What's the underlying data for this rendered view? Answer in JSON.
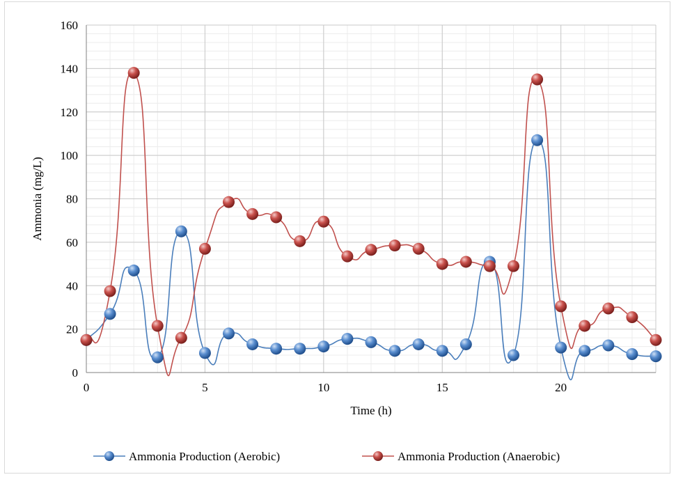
{
  "chart_data": {
    "type": "line",
    "title": "",
    "xlabel": "Time (h)",
    "ylabel": "Ammonia  (mg/L)",
    "xlim": [
      0,
      24
    ],
    "ylim": [
      0,
      160
    ],
    "x_ticks": [
      0,
      5,
      10,
      15,
      20
    ],
    "y_ticks": [
      0,
      20,
      40,
      60,
      80,
      100,
      120,
      140,
      160
    ],
    "grid": true,
    "minor_grid": true,
    "smooth": true,
    "legend_position": "bottom",
    "x": [
      0,
      1,
      2,
      3,
      4,
      5,
      6,
      7,
      8,
      9,
      10,
      11,
      12,
      13,
      14,
      15,
      16,
      17,
      18,
      19,
      20,
      21,
      22,
      23,
      24
    ],
    "series": [
      {
        "name": "Ammonia Production (Aerobic)",
        "color": "#4a7ebb",
        "values": [
          15,
          27,
          47,
          7,
          65,
          9,
          18,
          13,
          11,
          11,
          12,
          15.5,
          14,
          10,
          13,
          10,
          13,
          51,
          8,
          107,
          11.5,
          10,
          12.5,
          8.5,
          7.5
        ]
      },
      {
        "name": "Ammonia Production (Anaerobic)",
        "color": "#c0504d",
        "values": [
          15,
          37.5,
          138,
          21.5,
          16,
          57,
          78.5,
          73,
          71.5,
          60.5,
          69.5,
          53.5,
          56.5,
          58.5,
          57,
          50,
          51,
          49,
          49,
          135,
          30.5,
          21.5,
          29.5,
          25.5,
          15
        ]
      }
    ]
  }
}
